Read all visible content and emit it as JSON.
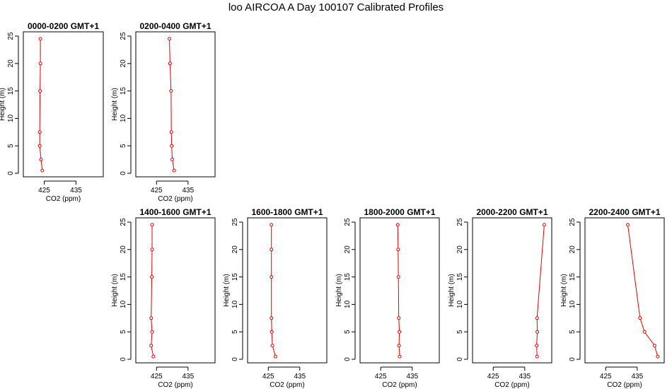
{
  "title": "loo AIRCOA A  Day 100107  Calibrated Profiles",
  "colors": {
    "series": "#e00000",
    "axes": "#000000"
  },
  "chart_data": [
    {
      "type": "line",
      "title": "0000-0200 GMT+1",
      "xlabel": "CO2 (ppm)",
      "ylabel": "Height (m)",
      "xlim": [
        420,
        442
      ],
      "ylim": [
        0,
        25
      ],
      "xticks": [
        425,
        435
      ],
      "yticks": [
        0,
        5,
        10,
        15,
        20,
        25
      ],
      "x": [
        424.4,
        424.0,
        423.6,
        423.6,
        423.7,
        423.8,
        423.8
      ],
      "y": [
        0.5,
        2.5,
        5,
        7.5,
        15,
        20,
        24.5
      ]
    },
    {
      "type": "line",
      "title": "0200-0400 GMT+1",
      "xlabel": "CO2 (ppm)",
      "ylabel": "Height (m)",
      "xlim": [
        420,
        442
      ],
      "ylim": [
        0,
        25
      ],
      "xticks": [
        425,
        435
      ],
      "yticks": [
        0,
        5,
        10,
        15,
        20,
        25
      ],
      "x": [
        430.6,
        430.0,
        429.8,
        429.7,
        429.6,
        429.3,
        429.1
      ],
      "y": [
        0.5,
        2.5,
        5,
        7.5,
        15,
        20,
        24.5
      ]
    },
    {
      "type": "line",
      "title": "1400-1600 GMT+1",
      "xlabel": "CO2 (ppm)",
      "ylabel": "Height (m)",
      "xlim": [
        420,
        442
      ],
      "ylim": [
        0,
        25
      ],
      "xticks": [
        425,
        435
      ],
      "yticks": [
        0,
        5,
        10,
        15,
        20,
        25
      ],
      "x": [
        424.0,
        423.3,
        423.6,
        423.3,
        423.5,
        423.6,
        423.6
      ],
      "y": [
        0.5,
        2.5,
        5,
        7.5,
        15,
        20,
        24.5
      ]
    },
    {
      "type": "line",
      "title": "1600-1800 GMT+1",
      "xlabel": "CO2 (ppm)",
      "ylabel": "Height (m)",
      "xlim": [
        420,
        442
      ],
      "ylim": [
        0,
        25
      ],
      "xticks": [
        425,
        435
      ],
      "yticks": [
        0,
        5,
        10,
        15,
        20,
        25
      ],
      "x": [
        427.3,
        426.3,
        426.1,
        426.0,
        426.0,
        426.0,
        426.0
      ],
      "y": [
        0.5,
        2.5,
        5,
        7.5,
        15,
        20,
        24.5
      ]
    },
    {
      "type": "line",
      "title": "1800-2000 GMT+1",
      "xlabel": "CO2 (ppm)",
      "ylabel": "Height (m)",
      "xlim": [
        420,
        442
      ],
      "ylim": [
        0,
        25
      ],
      "xticks": [
        425,
        435
      ],
      "yticks": [
        0,
        5,
        10,
        15,
        20,
        25
      ],
      "x": [
        431.0,
        430.8,
        430.9,
        430.7,
        430.6,
        430.5,
        430.4
      ],
      "y": [
        0.5,
        2.5,
        5,
        7.5,
        15,
        20,
        24.5
      ]
    },
    {
      "type": "line",
      "title": "2000-2200 GMT+1",
      "xlabel": "CO2 (ppm)",
      "ylabel": "Height (m)",
      "xlim": [
        420,
        442
      ],
      "ylim": [
        0,
        25
      ],
      "xticks": [
        425,
        435
      ],
      "yticks": [
        0,
        5,
        10,
        15,
        20,
        25
      ],
      "x": [
        438.9,
        438.8,
        439.0,
        438.9,
        441.2
      ],
      "y": [
        0.5,
        2.5,
        5,
        7.5,
        24.5
      ]
    },
    {
      "type": "line",
      "title": "2200-2400 GMT+1",
      "xlabel": "CO2 (ppm)",
      "ylabel": "Height (m)",
      "xlim": [
        420,
        442
      ],
      "ylim": [
        0,
        25
      ],
      "xticks": [
        425,
        435
      ],
      "yticks": [
        0,
        5,
        10,
        15,
        20,
        25
      ],
      "x": [
        441.5,
        440.5,
        437.3,
        435.9,
        432.0
      ],
      "y": [
        0.5,
        2.5,
        5,
        7.5,
        24.5
      ]
    }
  ]
}
